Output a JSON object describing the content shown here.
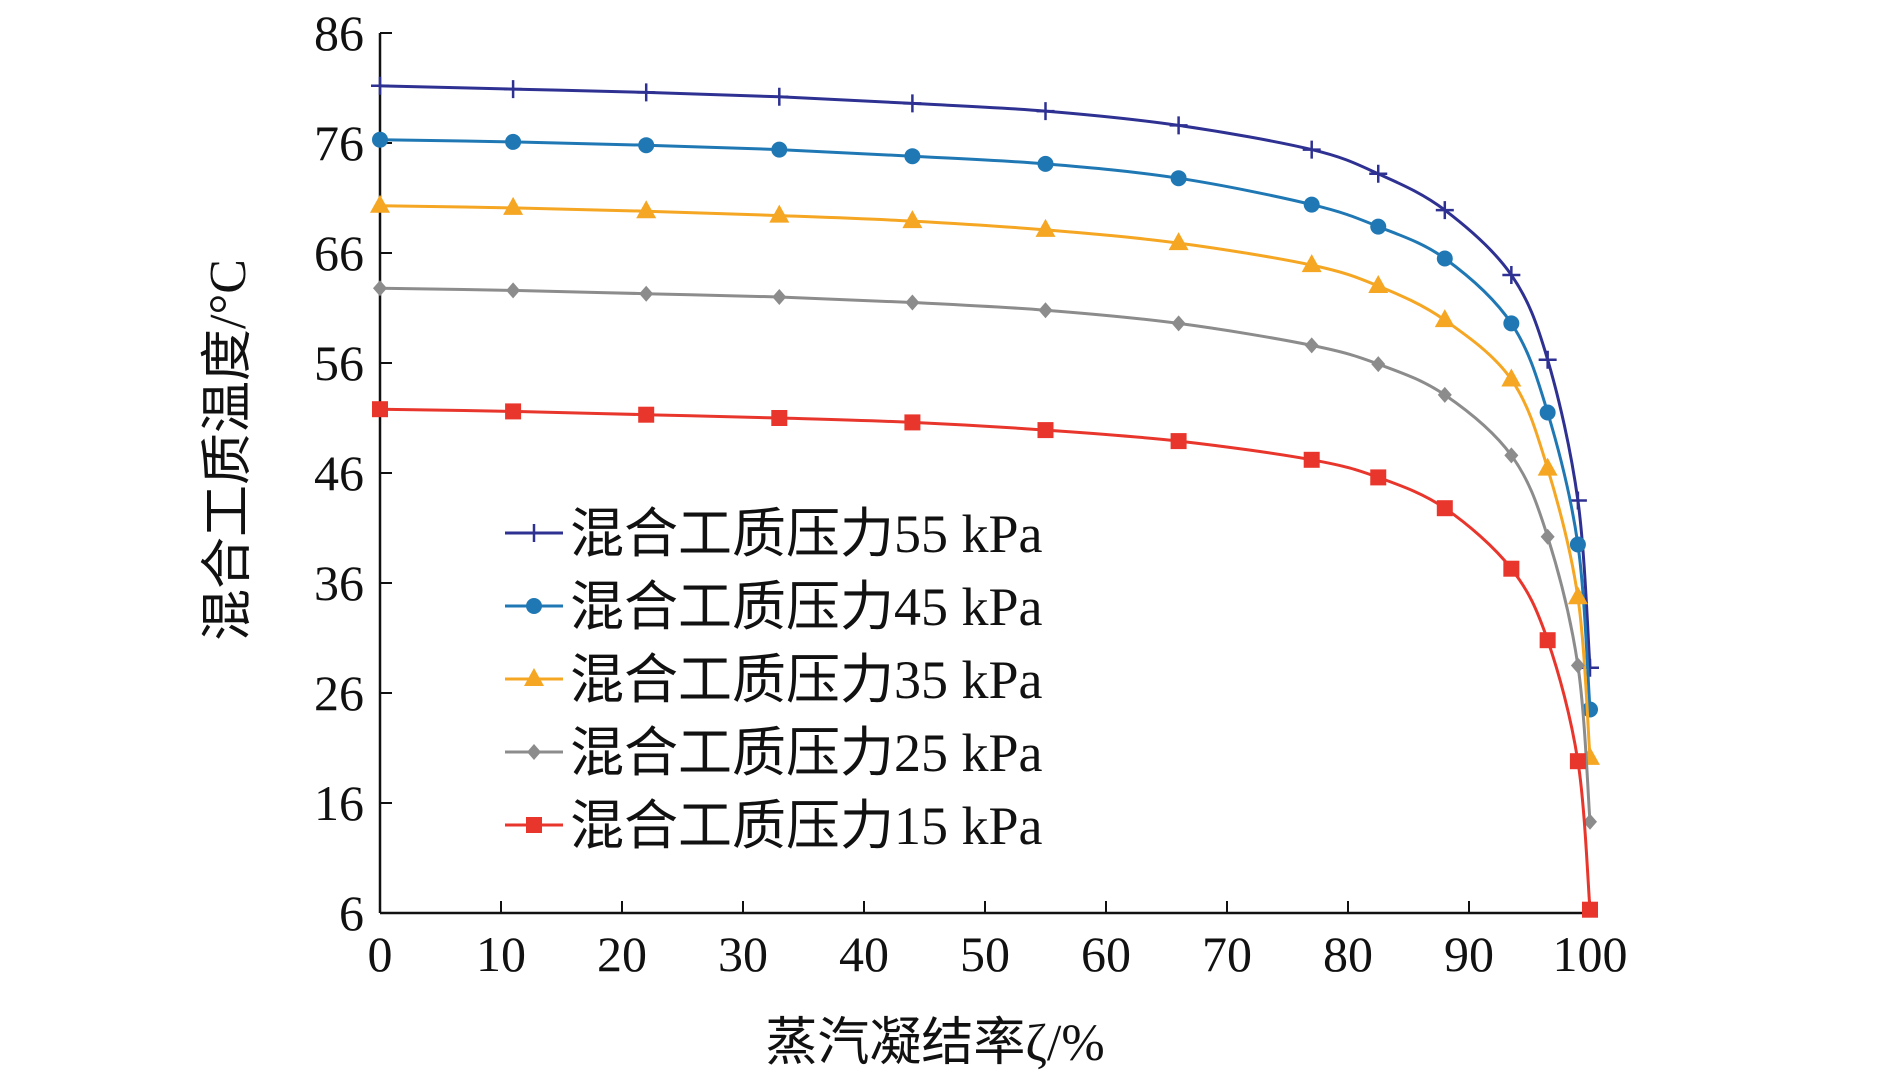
{
  "chart_data": {
    "type": "line",
    "title": "",
    "xlabel": "蒸汽凝结率ζ/%",
    "ylabel": "混合工质温度/°C",
    "xlim": [
      0,
      100
    ],
    "ylim": [
      6,
      86
    ],
    "x_ticks": [
      0,
      10,
      20,
      30,
      40,
      50,
      60,
      70,
      80,
      90,
      100
    ],
    "y_ticks": [
      6,
      16,
      26,
      36,
      46,
      56,
      66,
      76,
      86
    ],
    "x_tick_labels": [
      "0",
      "10",
      "20",
      "30",
      "40",
      "50",
      "60",
      "70",
      "80",
      "90",
      "100"
    ],
    "y_tick_labels": [
      "6",
      "16",
      "26",
      "36",
      "46",
      "56",
      "66",
      "76",
      "86"
    ],
    "grid": false,
    "legend_position": "center-left",
    "x": [
      0,
      11,
      22,
      33,
      44,
      55,
      66,
      77,
      82.5,
      88,
      93.5,
      96.5,
      99,
      100
    ],
    "series": [
      {
        "name": "混合工质压力55 kPa",
        "color": "#2e3192",
        "marker": "plus",
        "values": [
          81.2,
          80.9,
          80.6,
          80.2,
          79.6,
          78.9,
          77.6,
          75.4,
          73.2,
          69.9,
          64.0,
          56.3,
          43.5,
          28.3
        ]
      },
      {
        "name": "混合工质压力45 kPa",
        "color": "#1f78b4",
        "marker": "circle",
        "values": [
          76.3,
          76.1,
          75.8,
          75.4,
          74.8,
          74.1,
          72.8,
          70.4,
          68.4,
          65.5,
          59.6,
          51.5,
          39.5,
          24.5
        ]
      },
      {
        "name": "混合工质压力35 kPa",
        "color": "#f5a623",
        "marker": "triangle",
        "values": [
          70.3,
          70.1,
          69.8,
          69.4,
          68.9,
          68.1,
          66.9,
          64.9,
          63.0,
          59.9,
          54.5,
          46.4,
          34.7,
          20.1
        ]
      },
      {
        "name": "混合工质压力25 kPa",
        "color": "#8c8c8c",
        "marker": "diamond",
        "values": [
          62.8,
          62.6,
          62.3,
          62.0,
          61.5,
          60.8,
          59.6,
          57.6,
          55.9,
          53.1,
          47.6,
          40.2,
          28.5,
          14.3
        ]
      },
      {
        "name": "混合工质压力15 kPa",
        "color": "#e8362c",
        "marker": "square",
        "values": [
          51.8,
          51.6,
          51.3,
          51.0,
          50.6,
          49.9,
          48.9,
          47.2,
          45.6,
          42.8,
          37.3,
          30.8,
          19.8,
          6.3
        ]
      }
    ]
  }
}
